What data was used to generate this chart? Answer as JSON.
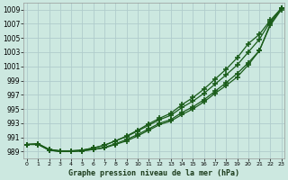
{
  "xlabel": "Graphe pression niveau de la mer (hPa)",
  "bg_color": "#cce8e0",
  "grid_color": "#b0cccc",
  "line_color": "#1a5c1a",
  "x": [
    0,
    1,
    2,
    3,
    4,
    5,
    6,
    7,
    8,
    9,
    10,
    11,
    12,
    13,
    14,
    15,
    16,
    17,
    18,
    19,
    20,
    21,
    22,
    23
  ],
  "line1": [
    990.0,
    990.0,
    989.2,
    989.0,
    989.0,
    989.1,
    989.3,
    989.5,
    990.0,
    990.5,
    991.2,
    992.0,
    992.8,
    993.3,
    994.2,
    995.0,
    996.0,
    997.2,
    998.3,
    999.5,
    1001.2,
    1003.2,
    1006.8,
    1009.0
  ],
  "line2": [
    990.0,
    990.0,
    989.2,
    989.0,
    989.0,
    989.1,
    989.3,
    989.6,
    990.1,
    990.7,
    991.4,
    992.2,
    993.0,
    993.5,
    994.5,
    995.3,
    996.3,
    997.5,
    998.7,
    1000.0,
    1001.5,
    1003.2,
    1007.0,
    1009.2
  ],
  "line3": [
    990.0,
    990.1,
    989.3,
    989.1,
    989.1,
    989.2,
    989.5,
    989.9,
    990.5,
    991.1,
    991.9,
    992.7,
    993.5,
    994.1,
    995.2,
    996.1,
    997.2,
    998.5,
    999.8,
    1001.2,
    1003.0,
    1004.8,
    1007.3,
    1009.2
  ],
  "line4": [
    990.0,
    990.1,
    989.3,
    989.1,
    989.1,
    989.2,
    989.5,
    989.9,
    990.5,
    991.2,
    992.0,
    992.9,
    993.7,
    994.4,
    995.6,
    996.6,
    997.8,
    999.2,
    1000.6,
    1002.2,
    1004.2,
    1005.5,
    1007.5,
    1009.2
  ],
  "ylim": [
    988.0,
    1010.0
  ],
  "yticks": [
    989,
    991,
    993,
    995,
    997,
    999,
    1001,
    1003,
    1005,
    1007,
    1009
  ]
}
